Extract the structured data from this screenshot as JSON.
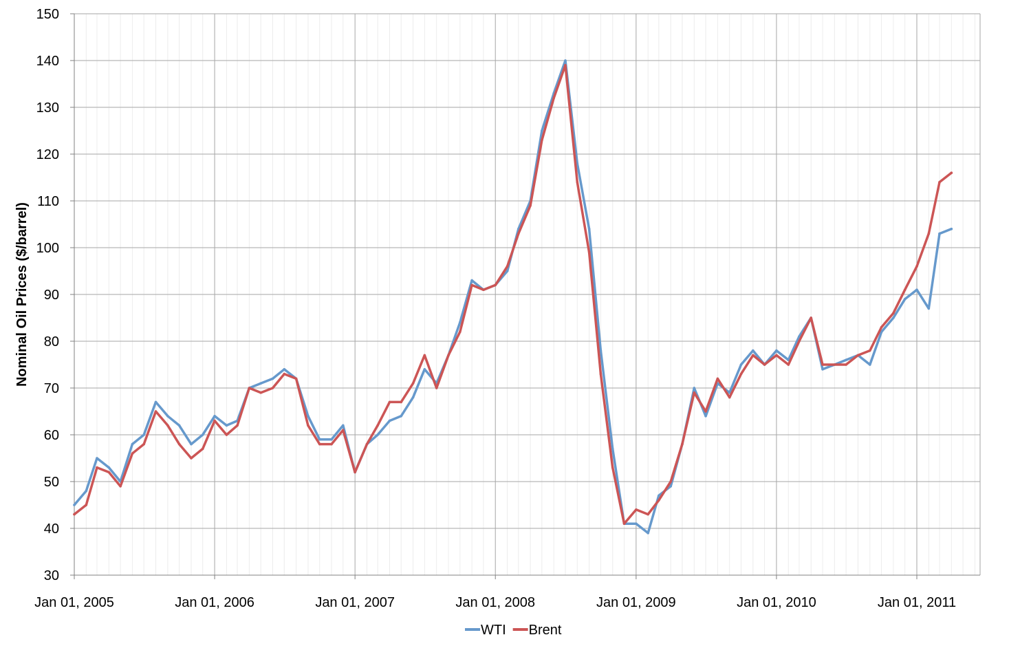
{
  "chart_data": {
    "type": "line",
    "title": "",
    "xlabel": "",
    "ylabel": "Nominal Oil Prices ($/barrel)",
    "ylim": [
      30,
      150
    ],
    "yticks": [
      "30",
      "40",
      "50",
      "60",
      "70",
      "80",
      "90",
      "100",
      "110",
      "120",
      "130",
      "140",
      "150"
    ],
    "xlim": [
      "2005-01-01",
      "2011-06-15"
    ],
    "xticks": [
      {
        "date": "2005-01-01",
        "label": "Jan 01, 2005"
      },
      {
        "date": "2006-01-01",
        "label": "Jan 01, 2006"
      },
      {
        "date": "2007-01-01",
        "label": "Jan 01, 2007"
      },
      {
        "date": "2008-01-01",
        "label": "Jan 01, 2008"
      },
      {
        "date": "2009-01-01",
        "label": "Jan 01, 2009"
      },
      {
        "date": "2010-01-01",
        "label": "Jan 01, 2010"
      },
      {
        "date": "2011-01-01",
        "label": "Jan 01, 2011"
      }
    ],
    "grid": true,
    "legend": "bottom",
    "series": [
      {
        "name": "WTI",
        "color": "#6699CC",
        "x": [
          "2005-01-01",
          "2005-02-01",
          "2005-03-01",
          "2005-04-01",
          "2005-05-01",
          "2005-06-01",
          "2005-07-01",
          "2005-08-01",
          "2005-09-01",
          "2005-10-01",
          "2005-11-01",
          "2005-12-01",
          "2006-01-01",
          "2006-02-01",
          "2006-03-01",
          "2006-04-01",
          "2006-05-01",
          "2006-06-01",
          "2006-07-01",
          "2006-08-01",
          "2006-09-01",
          "2006-10-01",
          "2006-11-01",
          "2006-12-01",
          "2007-01-01",
          "2007-02-01",
          "2007-03-01",
          "2007-04-01",
          "2007-05-01",
          "2007-06-01",
          "2007-07-01",
          "2007-08-01",
          "2007-09-01",
          "2007-10-01",
          "2007-11-01",
          "2007-12-01",
          "2008-01-01",
          "2008-02-01",
          "2008-03-01",
          "2008-04-01",
          "2008-05-01",
          "2008-06-01",
          "2008-07-01",
          "2008-08-01",
          "2008-09-01",
          "2008-10-01",
          "2008-11-01",
          "2008-12-01",
          "2009-01-01",
          "2009-02-01",
          "2009-03-01",
          "2009-04-01",
          "2009-05-01",
          "2009-06-01",
          "2009-07-01",
          "2009-08-01",
          "2009-09-01",
          "2009-10-01",
          "2009-11-01",
          "2009-12-01",
          "2010-01-01",
          "2010-02-01",
          "2010-03-01",
          "2010-04-01",
          "2010-05-01",
          "2010-06-01",
          "2010-07-01",
          "2010-08-01",
          "2010-09-01",
          "2010-10-01",
          "2010-11-01",
          "2010-12-01",
          "2011-01-01",
          "2011-02-01",
          "2011-03-01",
          "2011-04-01"
        ],
        "values": [
          45,
          48,
          55,
          53,
          50,
          58,
          60,
          67,
          64,
          62,
          58,
          60,
          64,
          62,
          63,
          70,
          71,
          72,
          74,
          72,
          64,
          59,
          59,
          62,
          52,
          58,
          60,
          63,
          64,
          68,
          74,
          71,
          77,
          84,
          93,
          91,
          92,
          95,
          104,
          110,
          125,
          133,
          140,
          118,
          104,
          78,
          57,
          41,
          41,
          39,
          47,
          49,
          58,
          70,
          64,
          71,
          69,
          75,
          78,
          75,
          78,
          76,
          81,
          85,
          74,
          75,
          76,
          77,
          75,
          82,
          85,
          89,
          91,
          87,
          103,
          104
        ]
      },
      {
        "name": "Brent",
        "color": "#CC5555",
        "x": [
          "2005-01-01",
          "2005-02-01",
          "2005-03-01",
          "2005-04-01",
          "2005-05-01",
          "2005-06-01",
          "2005-07-01",
          "2005-08-01",
          "2005-09-01",
          "2005-10-01",
          "2005-11-01",
          "2005-12-01",
          "2006-01-01",
          "2006-02-01",
          "2006-03-01",
          "2006-04-01",
          "2006-05-01",
          "2006-06-01",
          "2006-07-01",
          "2006-08-01",
          "2006-09-01",
          "2006-10-01",
          "2006-11-01",
          "2006-12-01",
          "2007-01-01",
          "2007-02-01",
          "2007-03-01",
          "2007-04-01",
          "2007-05-01",
          "2007-06-01",
          "2007-07-01",
          "2007-08-01",
          "2007-09-01",
          "2007-10-01",
          "2007-11-01",
          "2007-12-01",
          "2008-01-01",
          "2008-02-01",
          "2008-03-01",
          "2008-04-01",
          "2008-05-01",
          "2008-06-01",
          "2008-07-01",
          "2008-08-01",
          "2008-09-01",
          "2008-10-01",
          "2008-11-01",
          "2008-12-01",
          "2009-01-01",
          "2009-02-01",
          "2009-03-01",
          "2009-04-01",
          "2009-05-01",
          "2009-06-01",
          "2009-07-01",
          "2009-08-01",
          "2009-09-01",
          "2009-10-01",
          "2009-11-01",
          "2009-12-01",
          "2010-01-01",
          "2010-02-01",
          "2010-03-01",
          "2010-04-01",
          "2010-05-01",
          "2010-06-01",
          "2010-07-01",
          "2010-08-01",
          "2010-09-01",
          "2010-10-01",
          "2010-11-01",
          "2010-12-01",
          "2011-01-01",
          "2011-02-01",
          "2011-03-01",
          "2011-04-01"
        ],
        "values": [
          43,
          45,
          53,
          52,
          49,
          56,
          58,
          65,
          62,
          58,
          55,
          57,
          63,
          60,
          62,
          70,
          69,
          70,
          73,
          72,
          62,
          58,
          58,
          61,
          52,
          58,
          62,
          67,
          67,
          71,
          77,
          70,
          77,
          82,
          92,
          91,
          92,
          96,
          103,
          109,
          123,
          132,
          139,
          114,
          99,
          73,
          53,
          41,
          44,
          43,
          46,
          50,
          58,
          69,
          65,
          72,
          68,
          73,
          77,
          75,
          77,
          75,
          80,
          85,
          75,
          75,
          75,
          77,
          78,
          83,
          86,
          91,
          96,
          103,
          114,
          116
        ]
      }
    ]
  }
}
